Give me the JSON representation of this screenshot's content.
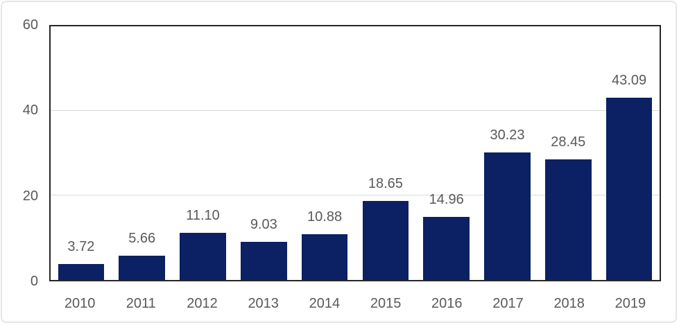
{
  "chart_data": {
    "type": "bar",
    "categories": [
      "2010",
      "2011",
      "2012",
      "2013",
      "2014",
      "2015",
      "2016",
      "2017",
      "2018",
      "2019"
    ],
    "values": [
      3.72,
      5.66,
      11.1,
      9.03,
      10.88,
      18.65,
      14.96,
      30.23,
      28.45,
      43.09
    ],
    "value_labels": [
      "3.72",
      "5.66",
      "11.10",
      "9.03",
      "10.88",
      "18.65",
      "14.96",
      "30.23",
      "28.45",
      "43.09"
    ],
    "title": "",
    "xlabel": "",
    "ylabel": "",
    "ylim": [
      0,
      60
    ],
    "yticks": [
      0,
      20,
      40,
      60
    ],
    "ytick_labels": [
      "0",
      "20",
      "40",
      "60"
    ],
    "grid": true,
    "legend_position": "none",
    "colors": {
      "bar": "#0b2164",
      "text_labels": "#595959",
      "gridline": "#d9d9d9",
      "plot_border": "#262626",
      "frame_border": "#e5e5e5",
      "background": "#ffffff"
    }
  }
}
